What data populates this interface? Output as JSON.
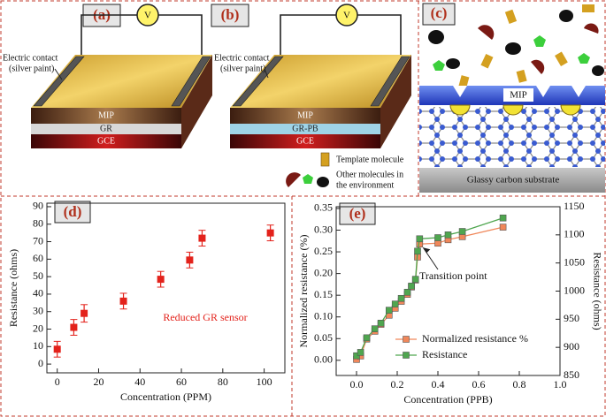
{
  "panels": {
    "a": {
      "label": "(a)",
      "meter": "V",
      "contact": [
        "Electric contact",
        "(silver paint)"
      ],
      "layers": [
        "MIP",
        "GR",
        "GCE"
      ]
    },
    "b": {
      "label": "(b)",
      "meter": "V",
      "contact": [
        "Electric contact",
        "(silver paint)"
      ],
      "layers": [
        "MIP",
        "GR-PB",
        "GCE"
      ]
    },
    "c": {
      "label": "(c)",
      "film": "MIP",
      "legend": [
        "Template molecule",
        "Other molecules in",
        "the environment"
      ],
      "substrate": "Glassy carbon substrate"
    },
    "d": {
      "label": "(d)"
    },
    "e": {
      "label": "(e)"
    }
  },
  "chart_data": [
    {
      "type": "scatter",
      "xlabel": "Concentration (PPM)",
      "ylabel": "Resistance (ohms)",
      "annotation": "Reduced GR sensor",
      "x": [
        0,
        8,
        13,
        32,
        50,
        64,
        70,
        103
      ],
      "values": [
        8.5,
        21,
        29,
        36,
        48.5,
        59.5,
        72,
        75
      ],
      "errors": [
        4.5,
        4.5,
        5,
        4.5,
        4.5,
        4.5,
        4.5,
        4.5
      ],
      "color": "#e3221b",
      "xlim": [
        -5,
        110
      ],
      "xticks": [
        0,
        20,
        40,
        60,
        80,
        100
      ],
      "ylim": [
        -5,
        92
      ],
      "yticks": [
        0,
        10,
        20,
        30,
        40,
        50,
        60,
        70,
        80,
        90
      ]
    },
    {
      "type": "line",
      "xlabel": "Concentration (PPB)",
      "ylabel": "Normalized resistance (%)",
      "y2label": "Resistance (ohms)",
      "annotation": "Transition point",
      "x": [
        0,
        0.02,
        0.05,
        0.09,
        0.12,
        0.16,
        0.19,
        0.22,
        0.25,
        0.27,
        0.29,
        0.3,
        0.31,
        0.4,
        0.45,
        0.52,
        0.72
      ],
      "series": [
        {
          "name": "Normalized resistance %",
          "color": "#f0875a",
          "values": [
            0.002,
            0.01,
            0.049,
            0.067,
            0.083,
            0.104,
            0.12,
            0.136,
            0.152,
            0.169,
            0.185,
            0.238,
            0.268,
            0.27,
            0.278,
            0.285,
            0.307
          ]
        },
        {
          "name": "Resistance",
          "color": "#4fa64f",
          "axis": "y2",
          "values": [
            885,
            891,
            917,
            933,
            943,
            966,
            977,
            987,
            998,
            1009,
            1021,
            1071,
            1093,
            1095,
            1100,
            1106,
            1130
          ]
        }
      ],
      "xlim": [
        -0.1,
        1.0
      ],
      "xticks": [
        {
          "value": 0,
          "label": "0.0"
        },
        0.2,
        0.4,
        0.6,
        0.8,
        {
          "value": 1,
          "label": "1.0"
        }
      ],
      "ylim": [
        -0.035,
        0.354
      ],
      "yticks": [
        {
          "value": 0,
          "label": "0.00"
        },
        0.05,
        {
          "value": 0.1,
          "label": "0.10"
        },
        0.15,
        {
          "value": 0.2,
          "label": "0.20"
        },
        0.25,
        {
          "value": 0.3,
          "label": "0.30"
        },
        0.35
      ],
      "y2lim": [
        850,
        1150
      ],
      "y2ticks": [
        850,
        900,
        950,
        1000,
        1050,
        1100,
        1150
      ],
      "legend": "lower right"
    }
  ]
}
